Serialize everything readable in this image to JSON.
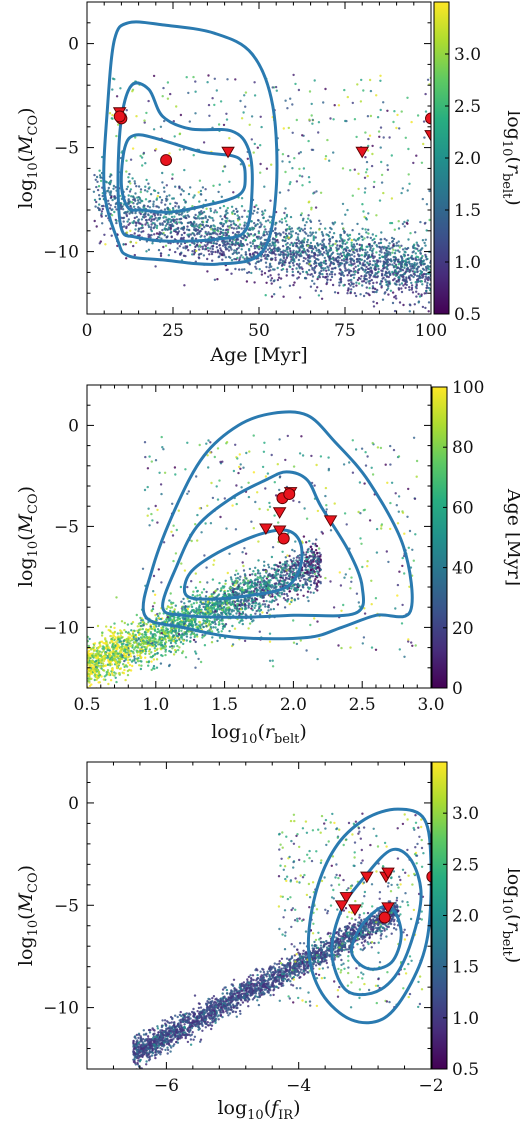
{
  "chart_data": [
    {
      "type": "scatter",
      "panel": "top",
      "xlabel": "Age [Myr]",
      "ylabel": "log10(M_CO)",
      "ylabel_parts": {
        "main": "log",
        "sub": "10",
        "open": "(",
        "var": "M",
        "var_sub": "CO",
        "close": ")"
      },
      "xlabel_parts": {
        "main": "Age [Myr]"
      },
      "xlim": [
        0,
        100
      ],
      "ylim": [
        -13,
        2
      ],
      "xticks": [
        0,
        25,
        50,
        75,
        100
      ],
      "xtick_labels": [
        "0",
        "25",
        "50",
        "75",
        "100"
      ],
      "yticks": [
        0,
        -5,
        -10
      ],
      "ytick_labels": [
        "0",
        "−5",
        "−10"
      ],
      "colorbar": {
        "label_parts": {
          "main": "log",
          "sub": "10",
          "open": "(",
          "var": "r",
          "var_sub": "belt",
          "close": ")"
        },
        "range": [
          0.5,
          3.5
        ],
        "ticks": [
          0.5,
          1.0,
          1.5,
          2.0,
          2.5,
          3.0
        ],
        "tick_labels": [
          "0.5",
          "1.0",
          "1.5",
          "2.0",
          "2.5",
          "3.0"
        ]
      },
      "contours": [
        [
          [
            9,
            -9.5
          ],
          [
            5,
            -7
          ],
          [
            6,
            -3
          ],
          [
            8,
            0.2
          ],
          [
            12,
            1
          ],
          [
            22,
            0.9
          ],
          [
            37,
            0.5
          ],
          [
            48,
            -0.5
          ],
          [
            54,
            -3
          ],
          [
            55,
            -7
          ],
          [
            51,
            -10
          ],
          [
            38,
            -10.6
          ],
          [
            22,
            -10.4
          ],
          [
            12,
            -10.2
          ],
          [
            9,
            -9.5
          ]
        ],
        [
          [
            10,
            -8.9
          ],
          [
            9,
            -6.5
          ],
          [
            10,
            -3.6
          ],
          [
            13,
            -2
          ],
          [
            18,
            -2.2
          ],
          [
            22,
            -3.5
          ],
          [
            30,
            -4.1
          ],
          [
            42,
            -4.2
          ],
          [
            47,
            -5.1
          ],
          [
            48,
            -7
          ],
          [
            46,
            -9
          ],
          [
            38,
            -9.4
          ],
          [
            24,
            -9.5
          ],
          [
            14,
            -9.3
          ],
          [
            10,
            -8.9
          ]
        ],
        [
          [
            12,
            -7.9
          ],
          [
            10,
            -6.8
          ],
          [
            11,
            -5
          ],
          [
            14,
            -4.4
          ],
          [
            21,
            -4.6
          ],
          [
            33,
            -5.2
          ],
          [
            44,
            -5.5
          ],
          [
            46,
            -6.5
          ],
          [
            44,
            -7.3
          ],
          [
            34,
            -7.8
          ],
          [
            24,
            -8.1
          ],
          [
            16,
            -8
          ],
          [
            12,
            -7.9
          ]
        ]
      ],
      "detections": [
        [
          10,
          -3.6
        ],
        [
          9.5,
          -3.5
        ],
        [
          23,
          -5.6
        ],
        [
          100,
          -3.6
        ]
      ],
      "upper_limits": [
        [
          9.5,
          -3.3
        ],
        [
          41,
          -5.2
        ],
        [
          80,
          -5.2
        ],
        [
          100,
          -4.4
        ]
      ],
      "background": {
        "color_variable": "log10(r_belt)",
        "description": "dense band of simulated points decreasing from about -6 at young ages to about -11 at 100 Myr, plus sparse points at higher masses",
        "band": {
          "x_range": [
            2,
            100
          ],
          "y_center_start": -7.0,
          "y_center_end": -11.0,
          "spread": 1.4
        },
        "sparse": {
          "x_range": [
            5,
            100
          ],
          "y_range": [
            -10,
            -1.5
          ]
        }
      }
    },
    {
      "type": "scatter",
      "panel": "middle",
      "xlabel": "log10(r_belt)",
      "ylabel": "log10(M_CO)",
      "ylabel_parts": {
        "main": "log",
        "sub": "10",
        "open": "(",
        "var": "M",
        "var_sub": "CO",
        "close": ")"
      },
      "xlabel_parts": {
        "main": "log",
        "sub": "10",
        "open": "(",
        "var": "r",
        "var_sub": "belt",
        "close": ")"
      },
      "xlim": [
        0.5,
        3.0
      ],
      "ylim": [
        -13,
        2
      ],
      "xticks": [
        0.5,
        1.0,
        1.5,
        2.0,
        2.5,
        3.0
      ],
      "xtick_labels": [
        "0.5",
        "1.0",
        "1.5",
        "2.0",
        "2.5",
        "3.0"
      ],
      "yticks": [
        0,
        -5,
        -10
      ],
      "ytick_labels": [
        "0",
        "−5",
        "−10"
      ],
      "colorbar": {
        "label_parts": {
          "main": "Age [Myr]"
        },
        "range": [
          0,
          100
        ],
        "ticks": [
          0,
          20,
          40,
          60,
          80,
          100
        ],
        "tick_labels": [
          "0",
          "20",
          "40",
          "60",
          "80",
          "100"
        ]
      },
      "contours": [
        [
          [
            0.92,
            -9.4
          ],
          [
            0.98,
            -7
          ],
          [
            1.15,
            -4
          ],
          [
            1.35,
            -1.5
          ],
          [
            1.6,
            0
          ],
          [
            1.85,
            0.6
          ],
          [
            2.1,
            0.5
          ],
          [
            2.3,
            -0.8
          ],
          [
            2.55,
            -2.8
          ],
          [
            2.8,
            -6
          ],
          [
            2.85,
            -9.2
          ],
          [
            2.6,
            -9.4
          ],
          [
            2.35,
            -10
          ],
          [
            2.1,
            -10.5
          ],
          [
            1.6,
            -10.5
          ],
          [
            1.2,
            -10
          ],
          [
            0.92,
            -9.4
          ]
        ],
        [
          [
            1.05,
            -9
          ],
          [
            1.15,
            -7
          ],
          [
            1.3,
            -5
          ],
          [
            1.55,
            -3.6
          ],
          [
            1.8,
            -2.7
          ],
          [
            1.95,
            -2.3
          ],
          [
            2.1,
            -2.7
          ],
          [
            2.2,
            -4
          ],
          [
            2.4,
            -6.2
          ],
          [
            2.5,
            -8
          ],
          [
            2.45,
            -9.3
          ],
          [
            2.0,
            -9.4
          ],
          [
            1.6,
            -9.5
          ],
          [
            1.2,
            -9.4
          ],
          [
            1.05,
            -9
          ]
        ],
        [
          [
            1.22,
            -8.4
          ],
          [
            1.25,
            -7.3
          ],
          [
            1.45,
            -6.3
          ],
          [
            1.75,
            -5.4
          ],
          [
            1.95,
            -5.2
          ],
          [
            2.05,
            -5.8
          ],
          [
            2.05,
            -7
          ],
          [
            1.95,
            -8
          ],
          [
            1.7,
            -8.4
          ],
          [
            1.4,
            -8.6
          ],
          [
            1.22,
            -8.4
          ]
        ]
      ],
      "detections": [
        [
          1.92,
          -3.6
        ],
        [
          1.97,
          -3.4
        ],
        [
          1.93,
          -5.6
        ]
      ],
      "upper_limits": [
        [
          1.98,
          -3.3
        ],
        [
          1.9,
          -4.3
        ],
        [
          1.8,
          -5.1
        ],
        [
          1.9,
          -5.2
        ],
        [
          2.27,
          -4.7
        ]
      ],
      "background": {
        "color_variable": "Age [Myr]",
        "description": "diagonal band of simulated points rising from about -12 at 0.5 to about -7 at 2.1, plus sparse points at higher masses",
        "band": {
          "x_range": [
            0.5,
            2.2
          ],
          "slope": 3.0,
          "intercept": -13.4,
          "spread": 1.0
        },
        "sparse": {
          "x_range": [
            0.9,
            2.9
          ],
          "y_range": [
            -12,
            -0.5
          ]
        }
      }
    },
    {
      "type": "scatter",
      "panel": "bottom",
      "xlabel": "log10(f_IR)",
      "ylabel": "log10(M_CO)",
      "ylabel_parts": {
        "main": "log",
        "sub": "10",
        "open": "(",
        "var": "M",
        "var_sub": "CO",
        "close": ")"
      },
      "xlabel_parts": {
        "main": "log",
        "sub": "10",
        "open": "(",
        "var": "f",
        "var_sub": "IR",
        "close": ")"
      },
      "xlim": [
        -7.2,
        -2
      ],
      "ylim": [
        -13,
        2
      ],
      "xticks": [
        -6,
        -4,
        -2
      ],
      "xtick_labels": [
        "−6",
        "−4",
        "−2"
      ],
      "yticks": [
        0,
        -5,
        -10
      ],
      "ytick_labels": [
        "0",
        "−5",
        "−10"
      ],
      "colorbar": {
        "label_parts": {
          "main": "log",
          "sub": "10",
          "open": "(",
          "var": "r",
          "var_sub": "belt",
          "close": ")"
        },
        "range": [
          0.5,
          3.5
        ],
        "ticks": [
          0.5,
          1.0,
          1.5,
          2.0,
          2.5,
          3.0
        ],
        "tick_labels": [
          "0.5",
          "1.0",
          "1.5",
          "2.0",
          "2.5",
          "3.0"
        ]
      },
      "contours": [
        [
          [
            -3.85,
            -7.2
          ],
          [
            -3.75,
            -4.5
          ],
          [
            -3.45,
            -2.2
          ],
          [
            -3.0,
            -0.8
          ],
          [
            -2.5,
            -0.3
          ],
          [
            -2.1,
            -0.8
          ],
          [
            -2.0,
            -3
          ],
          [
            -2.05,
            -6.5
          ],
          [
            -2.3,
            -8.8
          ],
          [
            -2.7,
            -10.5
          ],
          [
            -3.2,
            -10.6
          ],
          [
            -3.65,
            -9.3
          ],
          [
            -3.85,
            -7.2
          ]
        ],
        [
          [
            -3.5,
            -7.3
          ],
          [
            -3.35,
            -5.2
          ],
          [
            -3.0,
            -3.6
          ],
          [
            -2.6,
            -2.3
          ],
          [
            -2.3,
            -2.8
          ],
          [
            -2.15,
            -4.5
          ],
          [
            -2.3,
            -6.8
          ],
          [
            -2.55,
            -8.5
          ],
          [
            -2.9,
            -9.3
          ],
          [
            -3.3,
            -9.1
          ],
          [
            -3.5,
            -7.3
          ]
        ],
        [
          [
            -3.2,
            -7.3
          ],
          [
            -3.05,
            -6.0
          ],
          [
            -2.75,
            -5.1
          ],
          [
            -2.55,
            -5.3
          ],
          [
            -2.45,
            -6.5
          ],
          [
            -2.6,
            -7.8
          ],
          [
            -2.95,
            -8.1
          ],
          [
            -3.2,
            -7.3
          ]
        ]
      ],
      "detections": [
        [
          -2.7,
          -5.6
        ],
        [
          -1.98,
          -3.6
        ]
      ],
      "upper_limits": [
        [
          -3.28,
          -4.6
        ],
        [
          -3.35,
          -5.0
        ],
        [
          -3.15,
          -5.2
        ],
        [
          -2.97,
          -3.6
        ],
        [
          -2.68,
          -3.6
        ],
        [
          -2.65,
          -3.4
        ],
        [
          -2.65,
          -5.1
        ]
      ],
      "background": {
        "color_variable": "log10(r_belt)",
        "description": "diagonal band of simulated points from about -12.3 at -6.5 to about -5.5 at -2.6, plus sparse points at higher masses",
        "band": {
          "x_range": [
            -6.5,
            -2.5
          ],
          "slope": 1.75,
          "intercept": -0.9,
          "spread": 0.6
        },
        "sparse": {
          "x_range": [
            -4.3,
            -2.1
          ],
          "y_range": [
            -10,
            -0.5
          ]
        }
      }
    }
  ]
}
